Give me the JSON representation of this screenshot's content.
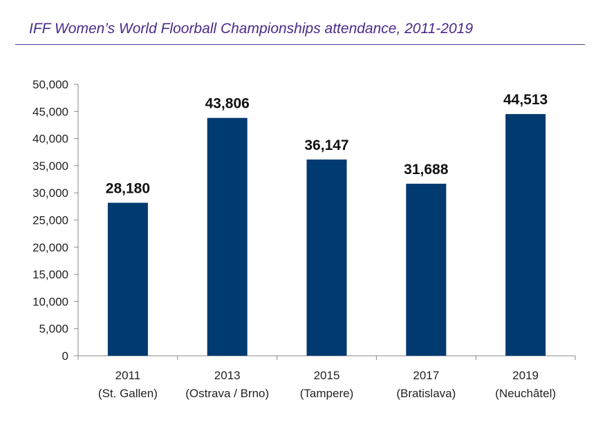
{
  "chart_data": {
    "type": "bar",
    "title": "IFF Women’s World Floorball Championships attendance, 2011-2019",
    "categories": [
      {
        "year": "2011",
        "venue": "(St. Gallen)"
      },
      {
        "year": "2013",
        "venue": "(Ostrava / Brno)"
      },
      {
        "year": "2015",
        "venue": "(Tampere)"
      },
      {
        "year": "2017",
        "venue": "(Bratislava)"
      },
      {
        "year": "2019",
        "venue": "(Neuchâtel)"
      }
    ],
    "values": [
      28180,
      43806,
      36147,
      31688,
      44513
    ],
    "value_labels": [
      "28,180",
      "43,806",
      "36,147",
      "31,688",
      "44,513"
    ],
    "ylim": [
      0,
      50000
    ],
    "yticks": [
      0,
      5000,
      10000,
      15000,
      20000,
      25000,
      30000,
      35000,
      40000,
      45000,
      50000
    ],
    "ytick_labels": [
      "0",
      "5,000",
      "10,000",
      "15,000",
      "20,000",
      "25,000",
      "30,000",
      "35,000",
      "40,000",
      "45,000",
      "50,000"
    ],
    "xlabel": "",
    "ylabel": "",
    "grid": false,
    "legend": "none",
    "bar_color": "#003a70",
    "title_color": "#4a2a8a"
  }
}
